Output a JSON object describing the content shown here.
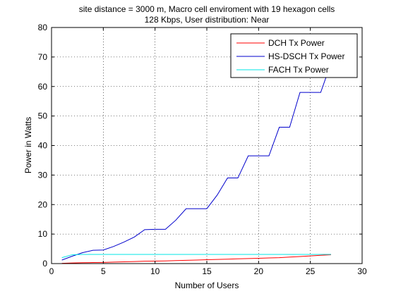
{
  "chart_data": {
    "type": "line",
    "title": "site distance = 3000 m, Macro cell enviroment with 19 hexagon cells",
    "subtitle": "128 Kbps, User distribution: Near",
    "xlabel": "Number of Users",
    "ylabel": "Power in Watts",
    "xlim": [
      0,
      30
    ],
    "ylim": [
      0,
      80
    ],
    "xticks": [
      0,
      5,
      10,
      15,
      20,
      25,
      30
    ],
    "yticks": [
      0,
      10,
      20,
      30,
      40,
      50,
      60,
      70,
      80
    ],
    "grid": true,
    "grid_style": "dotted",
    "legend_position": "top-right",
    "series": [
      {
        "name": "DCH Tx Power",
        "color": "#ff0000",
        "x": [
          1,
          2,
          3,
          4,
          5,
          6,
          7,
          8,
          9,
          10,
          11,
          12,
          13,
          14,
          15,
          16,
          17,
          18,
          19,
          20,
          21,
          22,
          23,
          24,
          25,
          26,
          27
        ],
        "y": [
          0.1,
          0.2,
          0.3,
          0.35,
          0.4,
          0.5,
          0.6,
          0.7,
          0.8,
          0.85,
          0.9,
          1.0,
          1.1,
          1.2,
          1.3,
          1.4,
          1.5,
          1.6,
          1.7,
          1.8,
          1.9,
          2.0,
          2.2,
          2.4,
          2.6,
          2.8,
          3.0
        ]
      },
      {
        "name": "HS-DSCH Tx Power",
        "color": "#0000cc",
        "x": [
          1,
          2,
          3,
          4,
          5,
          6,
          7,
          8,
          9,
          10,
          11,
          12,
          13,
          14,
          15,
          16,
          17,
          18,
          19,
          20,
          21,
          22,
          23,
          24,
          25,
          26,
          27
        ],
        "y": [
          1.2,
          2.5,
          3.7,
          4.5,
          4.6,
          5.8,
          7.3,
          9.0,
          11.5,
          11.6,
          11.6,
          14.7,
          18.6,
          18.6,
          18.6,
          23.2,
          29.0,
          29.0,
          36.5,
          36.5,
          36.5,
          46.2,
          46.2,
          58.0,
          58.0,
          58.0,
          68.0
        ]
      },
      {
        "name": "FACH Tx Power",
        "color": "#00e5e5",
        "x": [
          1,
          2,
          3,
          4,
          5,
          6,
          7,
          8,
          9,
          10,
          11,
          12,
          13,
          14,
          15,
          16,
          17,
          18,
          19,
          20,
          21,
          22,
          23,
          24,
          25,
          26,
          27
        ],
        "y": [
          2.0,
          3.0,
          3.1,
          3.1,
          3.1,
          3.1,
          3.1,
          3.1,
          3.1,
          3.1,
          3.1,
          3.1,
          3.1,
          3.1,
          3.1,
          3.1,
          3.1,
          3.1,
          3.1,
          3.1,
          3.1,
          3.1,
          3.1,
          3.1,
          3.1,
          3.1,
          3.1
        ]
      }
    ]
  }
}
